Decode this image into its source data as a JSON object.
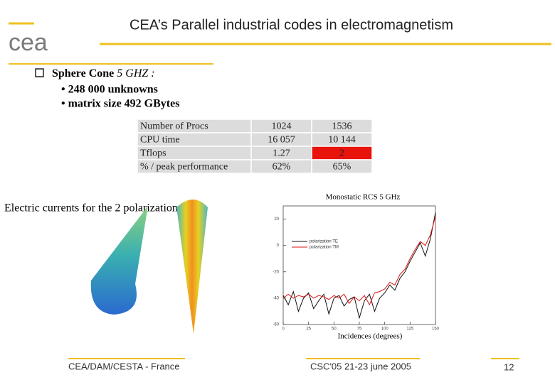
{
  "header": {
    "title": "CEA’s Parallel industrial codes in electromagnetism",
    "logo": "cea"
  },
  "bullet": {
    "lead": "Sphere Cone",
    "lead_italic": "5 GHZ :",
    "items": [
      "• 248 000 unknowns",
      "• matrix size 492 GBytes"
    ]
  },
  "table": {
    "rows": [
      [
        "Number of Procs",
        "1024",
        "1536"
      ],
      [
        "CPU time",
        "16 057",
        "10 144"
      ],
      [
        "Tflops",
        "1.27",
        {
          "text": "2",
          "fill": "#e8140c"
        }
      ],
      [
        "% / peak performance",
        "62%",
        "65%"
      ]
    ]
  },
  "caption": "Electric currents for the 2 polarizations",
  "chart_data": {
    "type": "line",
    "title": "Monostatic RCS  5 GHz",
    "xlabel": "Incidences (degrees)",
    "x": [
      0,
      5,
      10,
      15,
      20,
      25,
      30,
      35,
      40,
      45,
      50,
      55,
      60,
      65,
      70,
      75,
      80,
      85,
      90,
      95,
      100,
      105,
      110,
      115,
      120,
      125,
      130,
      135,
      140,
      145,
      150
    ],
    "series": [
      {
        "name": "polarization TE",
        "color": "#111111",
        "values": [
          -38,
          -45,
          -35,
          -50,
          -40,
          -36,
          -48,
          -42,
          -37,
          -52,
          -40,
          -38,
          -46,
          -41,
          -39,
          -55,
          -42,
          -37,
          -50,
          -40,
          -36,
          -30,
          -34,
          -25,
          -20,
          -12,
          -5,
          2,
          -8,
          5,
          25
        ]
      },
      {
        "name": "polarization TM",
        "color": "#e01010",
        "values": [
          -40,
          -37,
          -40,
          -38,
          -39,
          -37,
          -40,
          -38,
          -39,
          -41,
          -38,
          -40,
          -37,
          -44,
          -39,
          -42,
          -38,
          -45,
          -36,
          -35,
          -33,
          -28,
          -30,
          -22,
          -18,
          -10,
          -3,
          3,
          0,
          8,
          22
        ]
      }
    ],
    "xlim": [
      0,
      150
    ],
    "xticks": [
      0,
      25,
      50,
      75,
      100,
      125,
      150
    ],
    "ylim": [
      -60,
      30
    ],
    "yticks": [
      20,
      0,
      -20,
      -40,
      -60
    ]
  },
  "footer": {
    "left": "CEA/DAM/CESTA - France",
    "center": "CSC'05 21-23 june 2005",
    "page": "12"
  }
}
